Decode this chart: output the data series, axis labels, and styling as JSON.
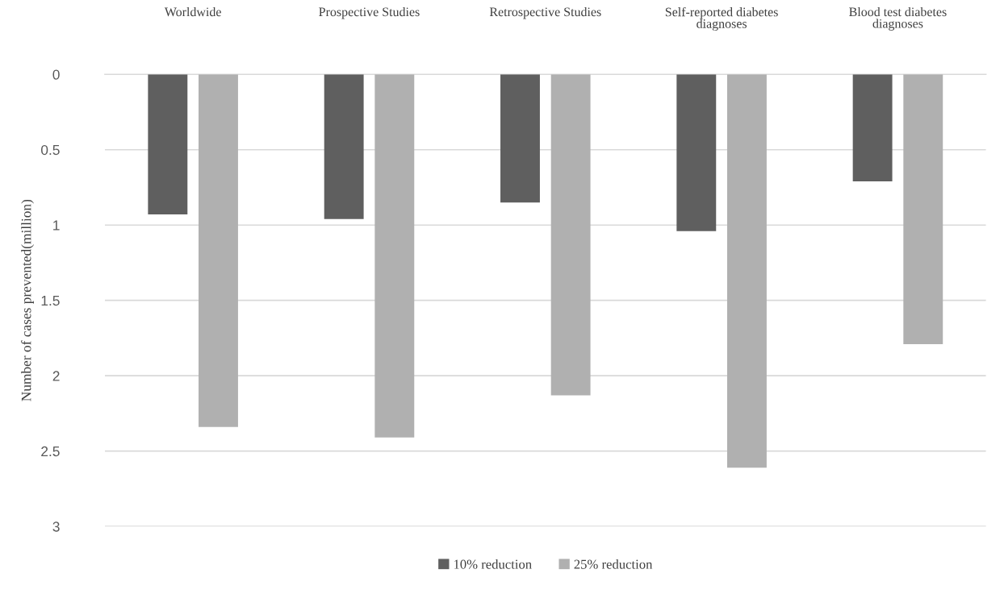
{
  "chart_data": {
    "type": "bar",
    "categories": [
      "Worldwide",
      "Prospective Studies",
      "Retrospective Studies",
      "Self-reported diabetes\ndiagnoses",
      "Blood test diabetes\ndiagnoses"
    ],
    "series": [
      {
        "name": "10% reduction",
        "color": "#5f5f5f",
        "values": [
          0.93,
          0.96,
          0.85,
          1.04,
          0.71
        ]
      },
      {
        "name": "25% reduction",
        "color": "#b0b0b0",
        "values": [
          2.34,
          2.41,
          2.13,
          2.61,
          1.79
        ]
      }
    ],
    "ylabel": "Number of cases prevented(million)",
    "ylim": [
      3,
      0
    ],
    "yticks": [
      0,
      0.5,
      1,
      1.5,
      2,
      2.5,
      3
    ],
    "grid": "y",
    "legend": "bottom"
  }
}
